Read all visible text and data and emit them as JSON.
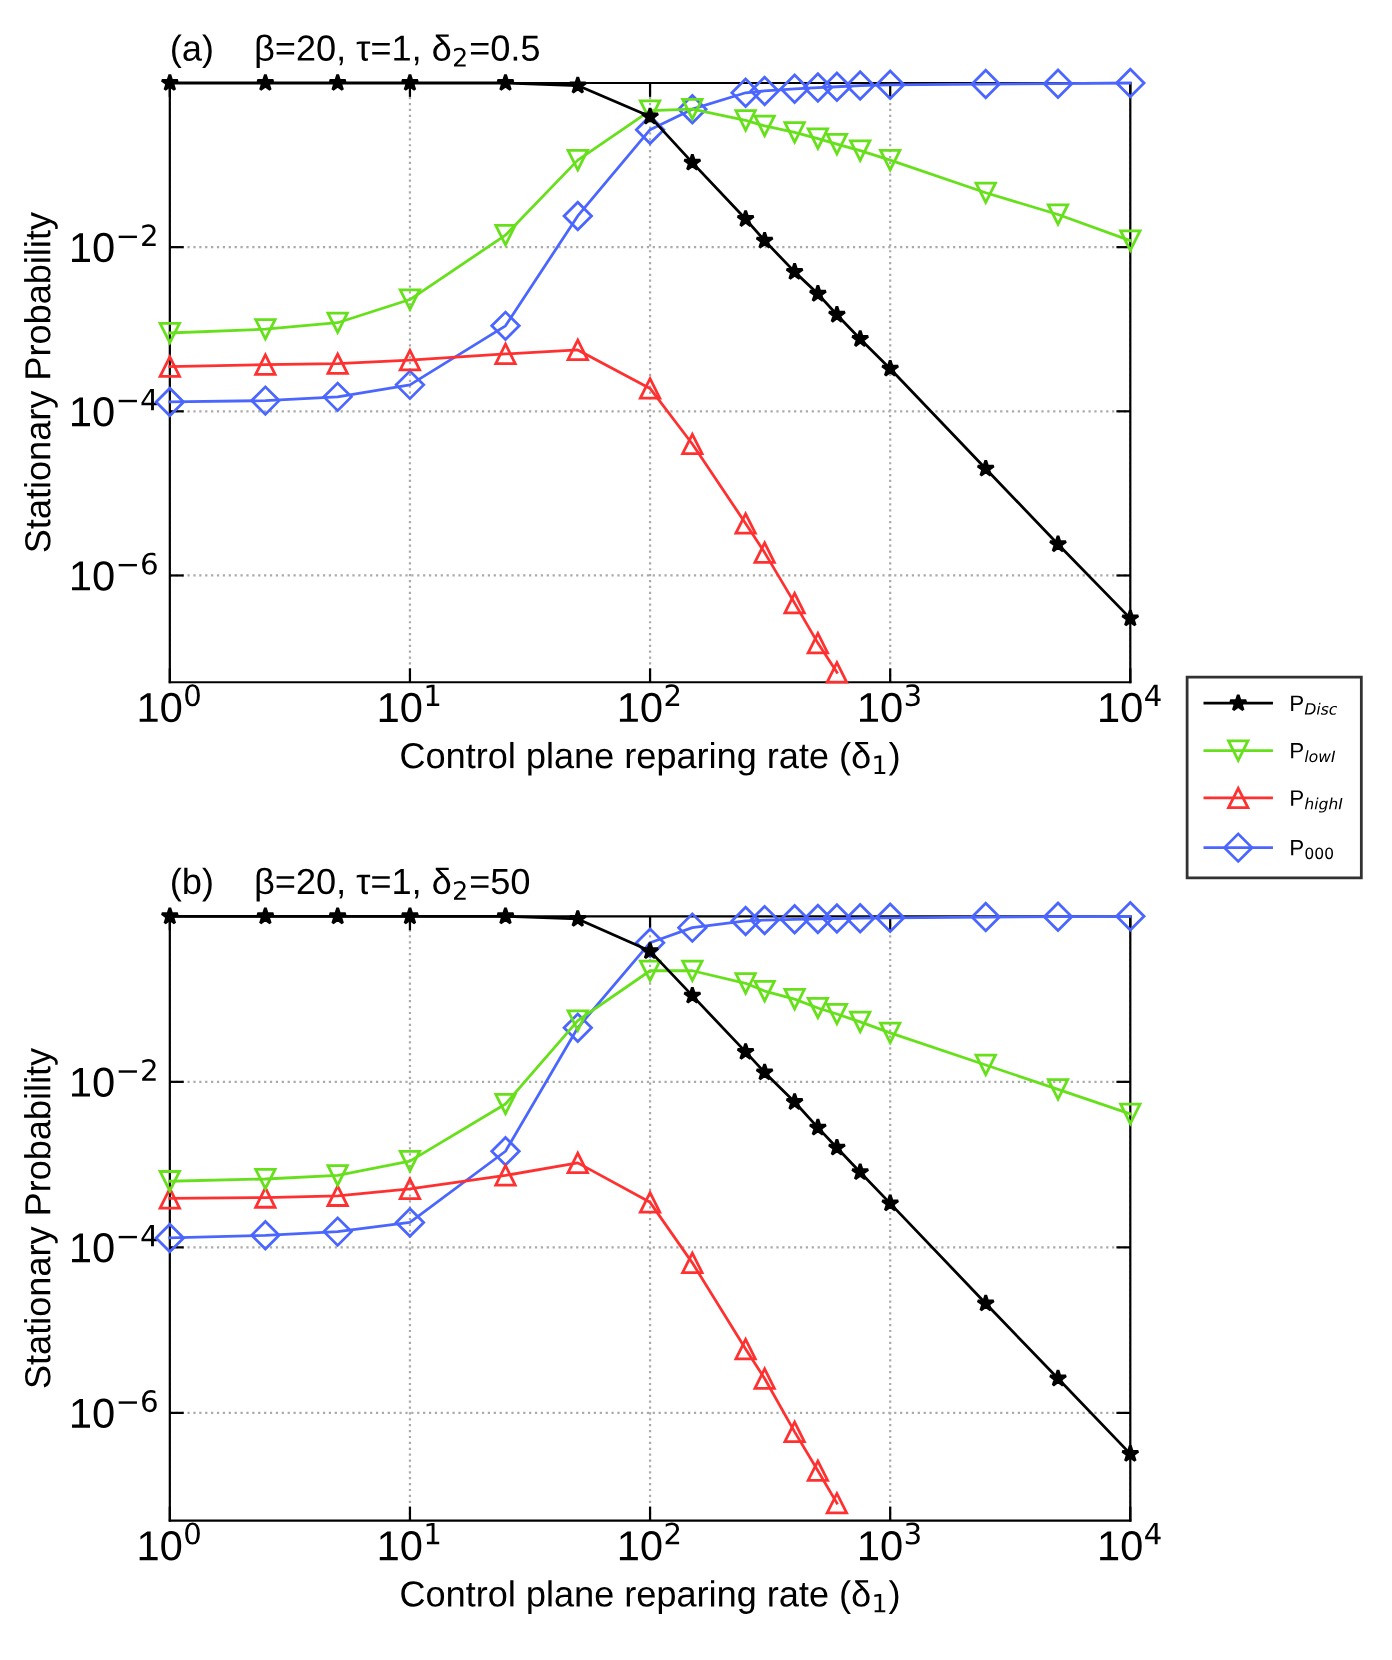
{
  "chart_data": [
    {
      "type": "line",
      "title": "(a)    β=20, τ=1, δ$_{2}$=0.5",
      "xlabel": "Control plane reparing rate (δ$_{1}$)",
      "ylabel": "Stationary Probability",
      "log": "xy",
      "grid": true,
      "legend": "bottom right",
      "line_style": "solid",
      "x": [
        1,
        2.5,
        5,
        10,
        25,
        50,
        100,
        150,
        250,
        300,
        400,
        500,
        600,
        750,
        1000,
        2500,
        5000,
        10000
      ],
      "xlim": [
        1,
        10000
      ],
      "xticks": [
        {
          "value": 1,
          "label": "10$^{0}$"
        },
        {
          "value": 10,
          "label": "10$^{1}$"
        },
        {
          "value": 100,
          "label": "10$^{2}$"
        },
        {
          "value": 1000,
          "label": "10$^{3}$"
        },
        {
          "value": 10000,
          "label": "10$^{4}$"
        }
      ],
      "ylim": [
        5e-08,
        1
      ],
      "yticks": [
        {
          "value": 0.01,
          "label": "10$^{−2}$"
        },
        {
          "value": 0.0001,
          "label": "10$^{−4}$"
        },
        {
          "value": 1e-06,
          "label": "10$^{−6}$"
        }
      ],
      "series": [
        {
          "name": "P$_{Disc}$",
          "color": "#000000",
          "marker": "star",
          "values": [
            1.0,
            1.0,
            1.0,
            1.0,
            1.0,
            0.93,
            0.39,
            0.107,
            0.022,
            0.012,
            0.005,
            0.0027,
            0.0015,
            0.00076,
            0.00033,
            2e-05,
            2.4e-06,
            3e-07
          ]
        },
        {
          "name": "P$_{lowI}$",
          "color": "#66e01a",
          "marker": "triangle_down",
          "values": [
            0.0009,
            0.001,
            0.0012,
            0.0023,
            0.014,
            0.115,
            0.46,
            0.48,
            0.35,
            0.3,
            0.25,
            0.21,
            0.18,
            0.15,
            0.115,
            0.046,
            0.025,
            0.012
          ]
        },
        {
          "name": "P$_{highI}$",
          "color": "#ff3030",
          "marker": "triangle",
          "values": [
            0.00035,
            0.00037,
            0.00038,
            0.00042,
            0.0005,
            0.00056,
            0.00019,
            4e-05,
            4.3e-06,
            1.9e-06,
            4.6e-07,
            1.5e-07,
            6.6e-08,
            null,
            null,
            null,
            null,
            null
          ]
        },
        {
          "name": "P$_{000}$",
          "color": "#4a66ff",
          "marker": "diamond",
          "values": [
            0.00013,
            0.000135,
            0.00015,
            0.00021,
            0.0011,
            0.024,
            0.27,
            0.48,
            0.76,
            0.8,
            0.85,
            0.88,
            0.9,
            0.93,
            0.95,
            0.97,
            0.98,
            1.0
          ]
        }
      ]
    },
    {
      "type": "line",
      "title": "(b)    β=20, τ=1, δ$_{2}$=50",
      "xlabel": "Control plane reparing rate (δ$_{1}$)",
      "ylabel": "Stationary Probability",
      "log": "xy",
      "grid": true,
      "line_style": "solid",
      "x": [
        1,
        2.5,
        5,
        10,
        25,
        50,
        100,
        150,
        250,
        300,
        400,
        500,
        600,
        750,
        1000,
        2500,
        5000,
        10000
      ],
      "xlim": [
        1,
        10000
      ],
      "xticks": [
        {
          "value": 1,
          "label": "10$^{0}$"
        },
        {
          "value": 10,
          "label": "10$^{1}$"
        },
        {
          "value": 100,
          "label": "10$^{2}$"
        },
        {
          "value": 1000,
          "label": "10$^{3}$"
        },
        {
          "value": 10000,
          "label": "10$^{4}$"
        }
      ],
      "ylim": [
        5e-08,
        1
      ],
      "yticks": [
        {
          "value": 0.01,
          "label": "10$^{−2}$"
        },
        {
          "value": 0.0001,
          "label": "10$^{−4}$"
        },
        {
          "value": 1e-06,
          "label": "10$^{−6}$"
        }
      ],
      "series": [
        {
          "color": "#000000",
          "marker": "star",
          "values": [
            1.0,
            1.0,
            1.0,
            1.0,
            1.0,
            0.93,
            0.38,
            0.11,
            0.023,
            0.013,
            0.0057,
            0.0028,
            0.0016,
            0.00081,
            0.00034,
            2.1e-05,
            2.6e-06,
            3.2e-07
          ]
        },
        {
          "color": "#66e01a",
          "marker": "triangle_down",
          "values": [
            0.00063,
            0.00067,
            0.00074,
            0.0011,
            0.0054,
            0.055,
            0.22,
            0.22,
            0.155,
            0.125,
            0.1,
            0.078,
            0.066,
            0.053,
            0.039,
            0.016,
            0.0081,
            0.0041
          ]
        },
        {
          "color": "#ff3030",
          "marker": "triangle",
          "values": [
            0.00039,
            0.0004,
            0.00042,
            0.00051,
            0.00074,
            0.00105,
            0.00035,
            6.5e-05,
            5.9e-06,
            2.6e-06,
            5.9e-07,
            2e-07,
            8.1e-08,
            null,
            null,
            null,
            null,
            null
          ]
        },
        {
          "color": "#4a66ff",
          "marker": "diamond",
          "values": [
            0.00013,
            0.00014,
            0.000155,
            0.0002,
            0.00145,
            0.045,
            0.48,
            0.73,
            0.88,
            0.9,
            0.92,
            0.93,
            0.94,
            0.95,
            0.96,
            0.98,
            0.99,
            1.0
          ]
        }
      ]
    }
  ]
}
